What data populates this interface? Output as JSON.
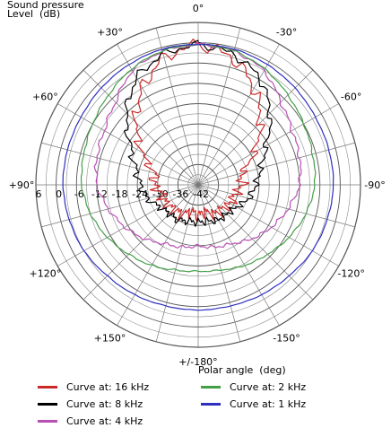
{
  "chart_data": {
    "type": "polar",
    "title": "",
    "ylabel_lines": [
      "Sound pressure",
      "Level  (dB)"
    ],
    "xlabel": "Polar angle  (deg)",
    "radial_range": [
      -42,
      6
    ],
    "radial_ticks": [
      "6",
      "0",
      "-6",
      "-12",
      "-18",
      "-24",
      "-30",
      "-36",
      "-42"
    ],
    "radial_tick_values": [
      6,
      0,
      -6,
      -12,
      -18,
      -24,
      -30,
      -36,
      -42
    ],
    "angle_labels": [
      "0°",
      "-30°",
      "-60°",
      "-90°",
      "-120°",
      "-150°",
      "+/-180°",
      "+150°",
      "+120°",
      "+90°",
      "+60°",
      "+30°"
    ],
    "angle_label_values": [
      0,
      -30,
      -60,
      -90,
      -120,
      -150,
      180,
      150,
      120,
      90,
      60,
      30
    ],
    "grid": true,
    "legend_placement": "bottom",
    "angles": [
      0,
      15,
      30,
      45,
      60,
      75,
      90,
      105,
      120,
      135,
      150,
      165,
      180
    ],
    "series": [
      {
        "name": "Curve at: 16 kHz",
        "color": "#cc2a2a",
        "values": [
          -0.5,
          -3,
          -9,
          -16,
          -23,
          -29,
          -29,
          -31,
          -31,
          -32,
          -32,
          -34,
          -33
        ]
      },
      {
        "name": "Curve at: 8 kHz",
        "color": "#000000",
        "values": [
          -0.5,
          -2,
          -5.5,
          -12,
          -19,
          -23,
          -25,
          -26.5,
          -29,
          -30,
          -30,
          -31,
          -31
        ]
      },
      {
        "name": "Curve at: 4 kHz",
        "color": "#b94fb5",
        "values": [
          -0.5,
          -1,
          -3,
          -7.5,
          -10,
          -11,
          -12,
          -14.5,
          -17,
          -19.5,
          -22,
          -23,
          -24
        ]
      },
      {
        "name": "Curve at: 2 kHz",
        "color": "#44a048",
        "values": [
          -0.5,
          -1,
          -2.5,
          -4.5,
          -6,
          -7,
          -7.5,
          -9,
          -11,
          -13,
          -14.5,
          -16,
          -16.5
        ]
      },
      {
        "name": "Curve at: 1 kHz",
        "color": "#2f2fbf",
        "values": [
          -0.5,
          -0.5,
          -1,
          -1.5,
          -2,
          -2,
          -2,
          -2.5,
          -3,
          -4,
          -4.5,
          -5,
          -5
        ]
      }
    ]
  }
}
